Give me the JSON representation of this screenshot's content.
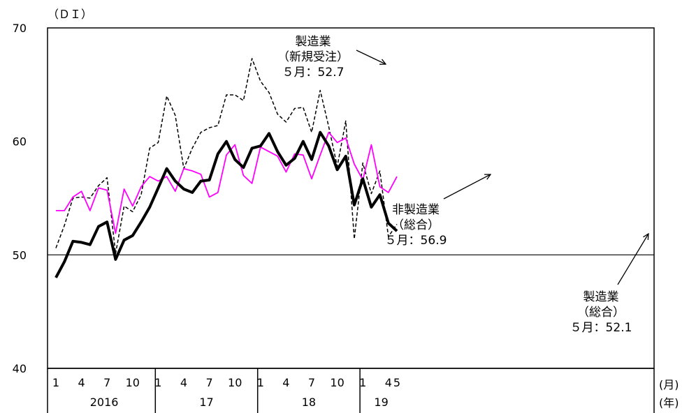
{
  "chart_data": {
    "type": "line",
    "y_unit_label": "（ＤＩ）",
    "month_unit_label": "(月)",
    "year_unit_label": "(年)",
    "ylim": [
      40,
      70
    ],
    "y_ticks": [
      "40",
      "50",
      "60",
      "70"
    ],
    "reference_line": 50,
    "x_ticks": [
      {
        "period": "2016-01",
        "label": "1"
      },
      {
        "period": "2016-04",
        "label": "4"
      },
      {
        "period": "2016-07",
        "label": "7"
      },
      {
        "period": "2016-10",
        "label": "10"
      },
      {
        "period": "2017-01",
        "label": "1"
      },
      {
        "period": "2017-04",
        "label": "4"
      },
      {
        "period": "2017-07",
        "label": "7"
      },
      {
        "period": "2017-10",
        "label": "10"
      },
      {
        "period": "2018-01",
        "label": "1"
      },
      {
        "period": "2018-04",
        "label": "4"
      },
      {
        "period": "2018-07",
        "label": "7"
      },
      {
        "period": "2018-10",
        "label": "10"
      },
      {
        "period": "2019-01",
        "label": "1"
      },
      {
        "period": "2019-04",
        "label": "4"
      },
      {
        "period": "2019-05",
        "label": "5"
      }
    ],
    "years": [
      {
        "label": "2016",
        "from": "2016-01",
        "to": "2016-12"
      },
      {
        "label": "17",
        "from": "2017-01",
        "to": "2017-12"
      },
      {
        "label": "18",
        "from": "2018-01",
        "to": "2018-12"
      },
      {
        "label": "19",
        "from": "2019-01",
        "to": "2019-05"
      }
    ],
    "x": [
      "2016-01",
      "2016-02",
      "2016-03",
      "2016-04",
      "2016-05",
      "2016-06",
      "2016-07",
      "2016-08",
      "2016-09",
      "2016-10",
      "2016-11",
      "2016-12",
      "2017-01",
      "2017-02",
      "2017-03",
      "2017-04",
      "2017-05",
      "2017-06",
      "2017-07",
      "2017-08",
      "2017-09",
      "2017-10",
      "2017-11",
      "2017-12",
      "2018-01",
      "2018-02",
      "2018-03",
      "2018-04",
      "2018-05",
      "2018-06",
      "2018-07",
      "2018-08",
      "2018-09",
      "2018-10",
      "2018-11",
      "2018-12",
      "2019-01",
      "2019-02",
      "2019-03",
      "2019-04",
      "2019-05"
    ],
    "series": [
      {
        "key": "mfg_new_orders",
        "color": "#000000",
        "style": "dashed",
        "values": [
          50.6,
          52.6,
          55.0,
          55.1,
          55.0,
          56.1,
          56.8,
          50.1,
          54.3,
          53.8,
          55.3,
          59.4,
          59.9,
          64.0,
          62.3,
          57.6,
          59.4,
          60.8,
          61.2,
          61.4,
          64.1,
          64.1,
          63.6,
          67.3,
          65.3,
          64.3,
          62.4,
          61.7,
          62.9,
          63.0,
          60.8,
          64.5,
          61.3,
          57.8,
          61.8,
          51.4,
          58.1,
          55.4,
          57.4,
          51.6,
          52.7
        ]
      },
      {
        "key": "non_mfg_composite",
        "color": "#ff00ff",
        "style": "solid",
        "values": [
          53.9,
          53.9,
          55.1,
          55.6,
          53.9,
          55.9,
          55.7,
          51.9,
          55.8,
          54.3,
          56.0,
          56.9,
          56.5,
          56.9,
          55.6,
          57.6,
          57.4,
          57.1,
          55.1,
          55.5,
          58.8,
          59.7,
          57.0,
          56.3,
          59.5,
          59.1,
          58.7,
          57.3,
          58.9,
          58.8,
          56.7,
          58.8,
          60.8,
          59.9,
          60.3,
          58.0,
          56.6,
          59.7,
          56.0,
          55.5,
          56.9
        ]
      },
      {
        "key": "mfg_composite",
        "color": "#000000",
        "style": "bold",
        "values": [
          48.0,
          49.4,
          51.2,
          51.1,
          50.9,
          52.5,
          52.9,
          49.6,
          51.3,
          51.7,
          52.9,
          54.2,
          55.9,
          57.6,
          56.5,
          55.8,
          55.5,
          56.5,
          56.6,
          58.9,
          60.0,
          58.4,
          57.7,
          59.4,
          59.6,
          60.7,
          59.1,
          57.9,
          58.5,
          60.0,
          58.4,
          60.8,
          59.6,
          57.5,
          58.7,
          54.4,
          56.7,
          54.2,
          55.3,
          52.8,
          52.1
        ]
      }
    ],
    "annotations": [
      {
        "series": "mfg_new_orders",
        "lines": [
          "製造業",
          "（新規受注）",
          "５月：52.7"
        ]
      },
      {
        "series": "non_mfg_composite",
        "lines": [
          "非製造業",
          "（総合）",
          "５月：56.9"
        ]
      },
      {
        "series": "mfg_composite",
        "lines": [
          "製造業",
          "（総合）",
          "５月：52.1"
        ]
      }
    ]
  }
}
